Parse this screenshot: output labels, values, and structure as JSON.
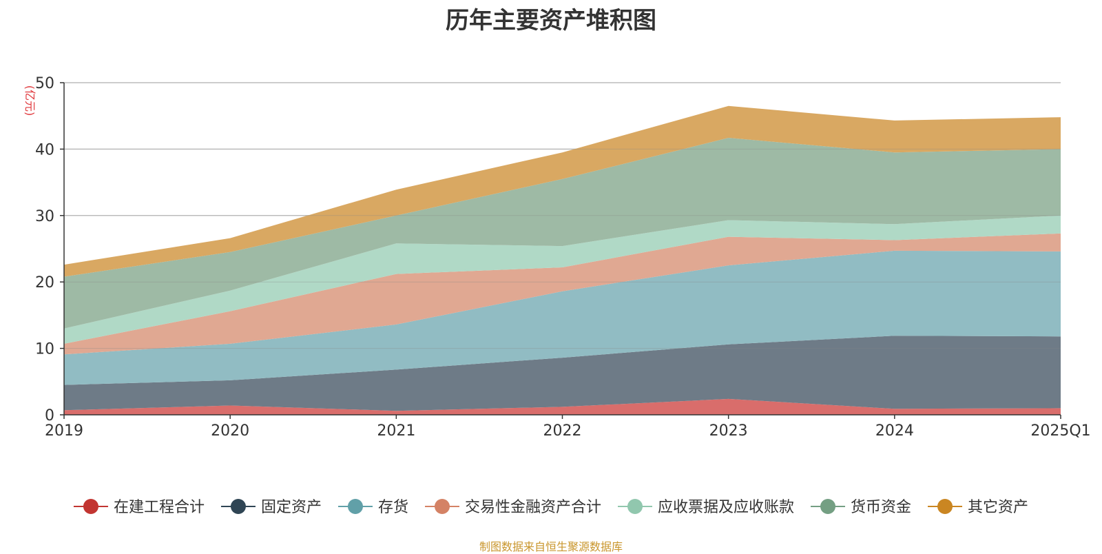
{
  "chart_data": {
    "type": "area",
    "stacked": true,
    "title": "历年主要资产堆积图",
    "ylabel": "(亿元)",
    "xlabel": "",
    "categories": [
      "2019",
      "2020",
      "2021",
      "2022",
      "2023",
      "2024",
      "2025Q1"
    ],
    "ylim": [
      0,
      50
    ],
    "yticks": [
      0,
      10,
      20,
      30,
      40,
      50
    ],
    "grid": true,
    "legend_position": "bottom",
    "series": [
      {
        "name": "在建工程合计",
        "color": "#c23531",
        "fill": "#d96d6b",
        "values": [
          0.7,
          1.4,
          0.6,
          1.2,
          2.4,
          0.9,
          1.0
        ]
      },
      {
        "name": "固定资产",
        "color": "#2f4554",
        "fill": "#6e7b87",
        "values": [
          3.8,
          3.8,
          6.2,
          7.4,
          8.2,
          11.0,
          10.8
        ]
      },
      {
        "name": "存货",
        "color": "#61a0a8",
        "fill": "#91bcc3",
        "values": [
          4.6,
          5.5,
          6.8,
          10.0,
          11.9,
          12.8,
          12.8
        ]
      },
      {
        "name": "交易性金融资产合计",
        "color": "#d48265",
        "fill": "#e0a892",
        "values": [
          1.6,
          4.9,
          7.6,
          3.6,
          4.3,
          1.6,
          2.7
        ]
      },
      {
        "name": "应收票据及应收账款",
        "color": "#91c7ae",
        "fill": "#b0d9c6",
        "values": [
          2.3,
          3.1,
          4.6,
          3.2,
          2.5,
          2.4,
          2.7
        ]
      },
      {
        "name": "货币资金",
        "color": "#749f83",
        "fill": "#9ebaa5",
        "values": [
          7.8,
          5.8,
          4.2,
          10.1,
          12.4,
          10.8,
          10.0
        ]
      },
      {
        "name": "其它资产",
        "color": "#ca8622",
        "fill": "#d9a862",
        "values": [
          1.8,
          2.1,
          3.9,
          4.0,
          4.8,
          4.8,
          4.8
        ]
      }
    ]
  },
  "source_note": {
    "text": "制图数据来自恒生聚源数据库",
    "color": "#c9962d"
  },
  "colors": {
    "axis": "#333333",
    "grid": "#cccccc",
    "unit_label": "#e0373b",
    "text": "#333333"
  }
}
